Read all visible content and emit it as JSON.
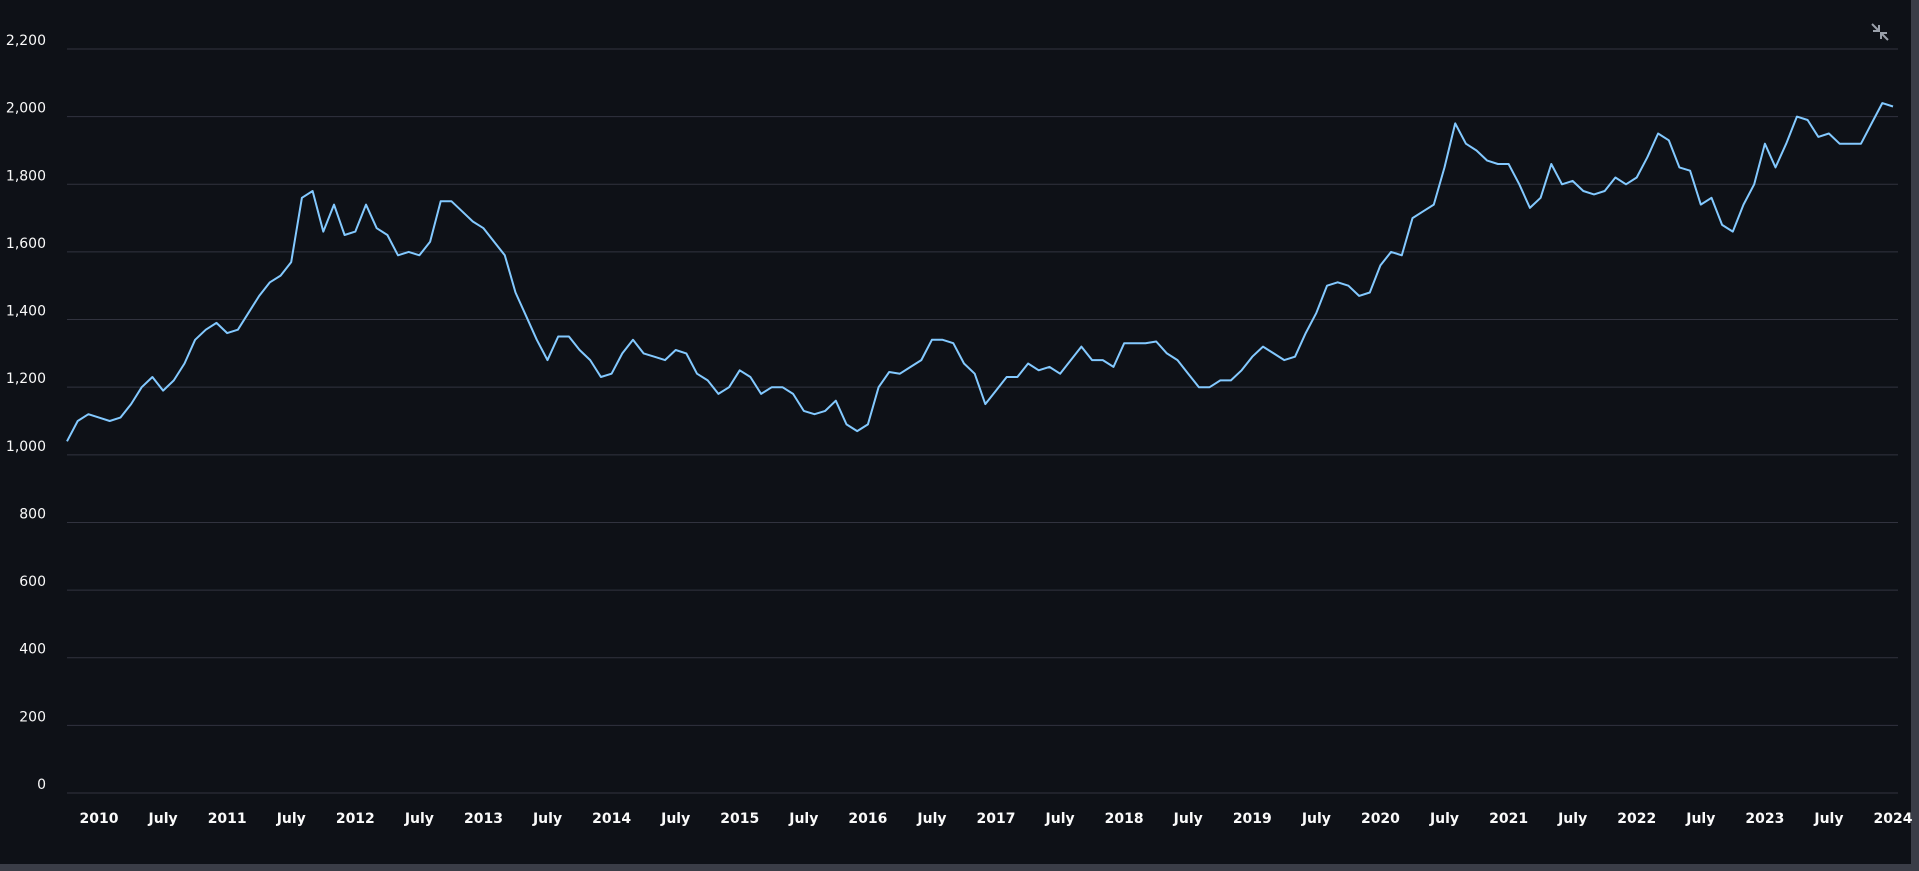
{
  "chart_data": {
    "type": "line",
    "color": "#83c9ff",
    "grid": true,
    "x": [
      "2009-10",
      "2009-11",
      "2009-12",
      "2010-01",
      "2010-02",
      "2010-03",
      "2010-04",
      "2010-05",
      "2010-06",
      "2010-07",
      "2010-08",
      "2010-09",
      "2010-10",
      "2010-11",
      "2010-12",
      "2011-01",
      "2011-02",
      "2011-03",
      "2011-04",
      "2011-05",
      "2011-06",
      "2011-07",
      "2011-08",
      "2011-09",
      "2011-10",
      "2011-11",
      "2011-12",
      "2012-01",
      "2012-02",
      "2012-03",
      "2012-04",
      "2012-05",
      "2012-06",
      "2012-07",
      "2012-08",
      "2012-09",
      "2012-10",
      "2012-11",
      "2012-12",
      "2013-01",
      "2013-02",
      "2013-03",
      "2013-04",
      "2013-05",
      "2013-06",
      "2013-07",
      "2013-08",
      "2013-09",
      "2013-10",
      "2013-11",
      "2013-12",
      "2014-01",
      "2014-02",
      "2014-03",
      "2014-04",
      "2014-05",
      "2014-06",
      "2014-07",
      "2014-08",
      "2014-09",
      "2014-10",
      "2014-11",
      "2014-12",
      "2015-01",
      "2015-02",
      "2015-03",
      "2015-04",
      "2015-05",
      "2015-06",
      "2015-07",
      "2015-08",
      "2015-09",
      "2015-10",
      "2015-11",
      "2015-12",
      "2016-01",
      "2016-02",
      "2016-03",
      "2016-04",
      "2016-05",
      "2016-06",
      "2016-07",
      "2016-08",
      "2016-09",
      "2016-10",
      "2016-11",
      "2016-12",
      "2017-01",
      "2017-02",
      "2017-03",
      "2017-04",
      "2017-05",
      "2017-06",
      "2017-07",
      "2017-08",
      "2017-09",
      "2017-10",
      "2017-11",
      "2017-12",
      "2018-01",
      "2018-02",
      "2018-03",
      "2018-04",
      "2018-05",
      "2018-06",
      "2018-07",
      "2018-08",
      "2018-09",
      "2018-10",
      "2018-11",
      "2018-12",
      "2019-01",
      "2019-02",
      "2019-03",
      "2019-04",
      "2019-05",
      "2019-06",
      "2019-07",
      "2019-08",
      "2019-09",
      "2019-10",
      "2019-11",
      "2019-12",
      "2020-01",
      "2020-02",
      "2020-03",
      "2020-04",
      "2020-05",
      "2020-06",
      "2020-07",
      "2020-08",
      "2020-09",
      "2020-10",
      "2020-11",
      "2020-12",
      "2021-01",
      "2021-02",
      "2021-03",
      "2021-04",
      "2021-05",
      "2021-06",
      "2021-07",
      "2021-08",
      "2021-09",
      "2021-10",
      "2021-11",
      "2021-12",
      "2022-01",
      "2022-02",
      "2022-03",
      "2022-04",
      "2022-05",
      "2022-06",
      "2022-07",
      "2022-08",
      "2022-09",
      "2022-10",
      "2022-11",
      "2022-12",
      "2023-01",
      "2023-02",
      "2023-03",
      "2023-04",
      "2023-05",
      "2023-06",
      "2023-07",
      "2023-08",
      "2023-09",
      "2023-10",
      "2023-11",
      "2023-12",
      "2024-01"
    ],
    "values": [
      1040,
      1100,
      1120,
      1110,
      1100,
      1110,
      1150,
      1200,
      1230,
      1190,
      1220,
      1270,
      1340,
      1370,
      1390,
      1360,
      1370,
      1420,
      1470,
      1510,
      1530,
      1570,
      1760,
      1780,
      1660,
      1740,
      1650,
      1660,
      1740,
      1670,
      1650,
      1590,
      1600,
      1590,
      1630,
      1750,
      1750,
      1720,
      1690,
      1670,
      1630,
      1590,
      1480,
      1410,
      1340,
      1280,
      1350,
      1350,
      1310,
      1280,
      1230,
      1240,
      1300,
      1340,
      1300,
      1290,
      1280,
      1310,
      1300,
      1240,
      1220,
      1180,
      1200,
      1250,
      1230,
      1180,
      1200,
      1200,
      1180,
      1130,
      1120,
      1130,
      1160,
      1090,
      1070,
      1090,
      1200,
      1245,
      1240,
      1260,
      1280,
      1340,
      1340,
      1330,
      1270,
      1240,
      1150,
      1190,
      1230,
      1230,
      1270,
      1250,
      1260,
      1240,
      1280,
      1320,
      1280,
      1280,
      1260,
      1330,
      1330,
      1330,
      1335,
      1300,
      1280,
      1240,
      1200,
      1200,
      1220,
      1220,
      1250,
      1290,
      1320,
      1300,
      1280,
      1290,
      1360,
      1420,
      1500,
      1510,
      1500,
      1470,
      1480,
      1560,
      1600,
      1590,
      1700,
      1720,
      1740,
      1850,
      1980,
      1920,
      1900,
      1870,
      1860,
      1860,
      1800,
      1730,
      1760,
      1860,
      1800,
      1810,
      1780,
      1770,
      1780,
      1820,
      1800,
      1820,
      1880,
      1950,
      1930,
      1850,
      1840,
      1740,
      1760,
      1680,
      1660,
      1740,
      1800,
      1920,
      1850,
      1920,
      2000,
      1990,
      1940,
      1950,
      1920,
      1920,
      1920,
      1980,
      2040,
      2030
    ],
    "xlim": [
      "2009-10",
      "2024-01"
    ],
    "xticks": [
      {
        "value": "2010-01",
        "label": "2010"
      },
      {
        "value": "2010-07",
        "label": "July"
      },
      {
        "value": "2011-01",
        "label": "2011"
      },
      {
        "value": "2011-07",
        "label": "July"
      },
      {
        "value": "2012-01",
        "label": "2012"
      },
      {
        "value": "2012-07",
        "label": "July"
      },
      {
        "value": "2013-01",
        "label": "2013"
      },
      {
        "value": "2013-07",
        "label": "July"
      },
      {
        "value": "2014-01",
        "label": "2014"
      },
      {
        "value": "2014-07",
        "label": "July"
      },
      {
        "value": "2015-01",
        "label": "2015"
      },
      {
        "value": "2015-07",
        "label": "July"
      },
      {
        "value": "2016-01",
        "label": "2016"
      },
      {
        "value": "2016-07",
        "label": "July"
      },
      {
        "value": "2017-01",
        "label": "2017"
      },
      {
        "value": "2017-07",
        "label": "July"
      },
      {
        "value": "2018-01",
        "label": "2018"
      },
      {
        "value": "2018-07",
        "label": "July"
      },
      {
        "value": "2019-01",
        "label": "2019"
      },
      {
        "value": "2019-07",
        "label": "July"
      },
      {
        "value": "2020-01",
        "label": "2020"
      },
      {
        "value": "2020-07",
        "label": "July"
      },
      {
        "value": "2021-01",
        "label": "2021"
      },
      {
        "value": "2021-07",
        "label": "July"
      },
      {
        "value": "2022-01",
        "label": "2022"
      },
      {
        "value": "2022-07",
        "label": "July"
      },
      {
        "value": "2023-01",
        "label": "2023"
      },
      {
        "value": "2023-07",
        "label": "July"
      },
      {
        "value": "2024-01",
        "label": "2024"
      }
    ],
    "ylim": [
      0,
      2200
    ],
    "yticks": [
      0,
      200,
      400,
      600,
      800,
      {
        "value": 1000,
        "label": "1,000"
      },
      {
        "value": 1200,
        "label": "1,200"
      },
      {
        "value": 1400,
        "label": "1,400"
      },
      {
        "value": 1600,
        "label": "1,600"
      },
      {
        "value": 1800,
        "label": "1,800"
      },
      {
        "value": 2000,
        "label": "2,000"
      },
      {
        "value": 2200,
        "label": "2,200"
      }
    ]
  }
}
